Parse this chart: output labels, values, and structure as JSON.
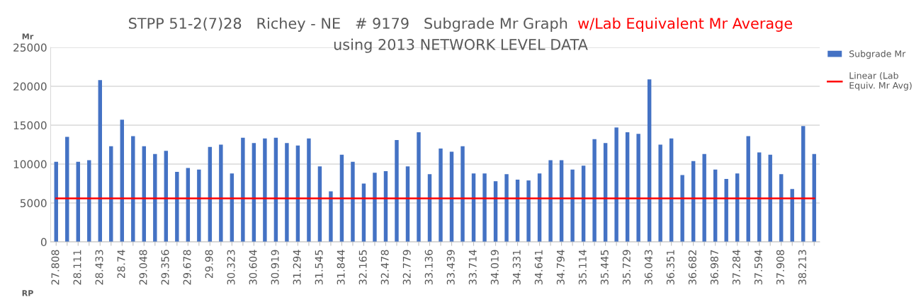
{
  "chart_data": {
    "type": "bar",
    "title": "STPP 51-2(7)28   Richey - NE   # 9179   Subgrade Mr Graph",
    "annotations": [
      "w/Lab Equivalent Mr Average"
    ],
    "subtitle": "using 2013 NETWORK LEVEL DATA",
    "xlabel": "RP",
    "ylabel": "Mr",
    "categories": [
      "27.808",
      null,
      "28.111",
      null,
      "28.433",
      null,
      "28.74",
      null,
      "29.048",
      null,
      "29.356",
      null,
      "29.678",
      null,
      "29.98",
      null,
      "30.323",
      null,
      "30.604",
      null,
      "30.919",
      null,
      "31.294",
      null,
      "31.545",
      null,
      "31.844",
      null,
      "32.165",
      null,
      "32.478",
      null,
      "32.779",
      null,
      "33.136",
      null,
      "33.439",
      null,
      "33.714",
      null,
      "34.019",
      null,
      "34.331",
      null,
      "34.641",
      null,
      "34.794",
      null,
      "35.114",
      null,
      "35.445",
      null,
      "35.729",
      null,
      "36.043",
      null,
      "36.351",
      null,
      "36.682",
      null,
      "36.987",
      null,
      "37.284",
      null,
      "37.594",
      null,
      "37.908",
      null,
      "38.213",
      null
    ],
    "series": [
      {
        "name": "Subgrade Mr",
        "color": "#4472c4",
        "values": [
          10300,
          13500,
          10300,
          10500,
          20800,
          12300,
          15700,
          13600,
          12300,
          11300,
          11700,
          9000,
          9500,
          9300,
          12200,
          12500,
          8800,
          13400,
          12700,
          13300,
          13400,
          12700,
          12400,
          13300,
          9700,
          6500,
          11200,
          10300,
          7500,
          8900,
          9100,
          13100,
          9700,
          14100,
          8700,
          12000,
          11600,
          12300,
          8800,
          8800,
          7800,
          8700,
          8000,
          7900,
          8800,
          10500,
          10500,
          9300,
          9800,
          13200,
          12700,
          14700,
          14100,
          13900,
          20900,
          12500,
          13300,
          8600,
          10400,
          11300,
          9300,
          8100,
          8800,
          13600,
          11500,
          11200,
          8700,
          6800,
          14900,
          11300
        ]
      },
      {
        "name": "Linear (Lab\nEquiv. Mr Avg)",
        "type": "line",
        "color": "#ff0000",
        "values": [
          5600,
          5600,
          5600,
          5600,
          5600,
          5600,
          5600,
          5600,
          5600,
          5600,
          5600,
          5600,
          5600,
          5600,
          5600,
          5600,
          5600,
          5600,
          5600,
          5600,
          5600,
          5600,
          5600,
          5600,
          5600,
          5600,
          5600,
          5600,
          5600,
          5600,
          5600,
          5600,
          5600,
          5600,
          5600,
          5600,
          5600,
          5600,
          5600,
          5600,
          5600,
          5600,
          5600,
          5600,
          5600,
          5600,
          5600,
          5600,
          5600,
          5600,
          5600,
          5600,
          5600,
          5600,
          5600,
          5600,
          5600,
          5600,
          5600,
          5600,
          5600,
          5600,
          5600,
          5600,
          5600,
          5600,
          5600,
          5600,
          5600,
          5600
        ]
      }
    ],
    "ylim": [
      0,
      25000
    ],
    "yticks": [
      0,
      5000,
      10000,
      15000,
      20000,
      25000
    ],
    "grid": "y",
    "legend": "top right",
    "marker": "none",
    "line_style": "solid"
  }
}
